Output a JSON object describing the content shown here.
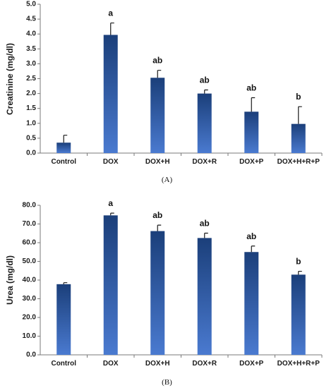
{
  "chart_data": [
    {
      "type": "bar",
      "panel_label": "(A)",
      "ylabel": "Creatinine (mg/dl)",
      "categories": [
        "Control",
        "DOX",
        "DOX+H",
        "DOX+R",
        "DOX+P",
        "DOX+H+R+P"
      ],
      "values": [
        0.35,
        3.97,
        2.53,
        2.0,
        1.39,
        0.98
      ],
      "errors": [
        0.25,
        0.4,
        0.25,
        0.12,
        0.47,
        0.58
      ],
      "significance": [
        "",
        "a",
        "ab",
        "ab",
        "ab",
        "b"
      ],
      "ylim": [
        0,
        5
      ],
      "yticks": [
        "0.0",
        "0.5",
        "1.0",
        "1.5",
        "2.0",
        "2.5",
        "3.0",
        "3.5",
        "4.0",
        "4.5",
        "5.0"
      ],
      "bar_color_top": "#1b3f7a",
      "bar_color_bottom": "#4a7ad0",
      "grid": false
    },
    {
      "type": "bar",
      "panel_label": "(B)",
      "ylabel": "Urea (mg/dl)",
      "categories": [
        "Control",
        "DOX",
        "DOX+H",
        "DOX+R",
        "DOX+P",
        "DOX+H+R+P"
      ],
      "values": [
        37.8,
        74.6,
        66.2,
        62.5,
        55.0,
        42.9
      ],
      "errors": [
        0.8,
        1.2,
        3.2,
        2.6,
        3.2,
        1.8
      ],
      "significance": [
        "",
        "a",
        "ab",
        "ab",
        "ab",
        "b"
      ],
      "ylim": [
        0,
        80
      ],
      "yticks": [
        "0.0",
        "10.0",
        "20.0",
        "30.0",
        "40.0",
        "50.0",
        "60.0",
        "70.0",
        "80.0"
      ],
      "bar_color_top": "#1b3f7a",
      "bar_color_bottom": "#4a7ad0",
      "grid": false
    }
  ]
}
